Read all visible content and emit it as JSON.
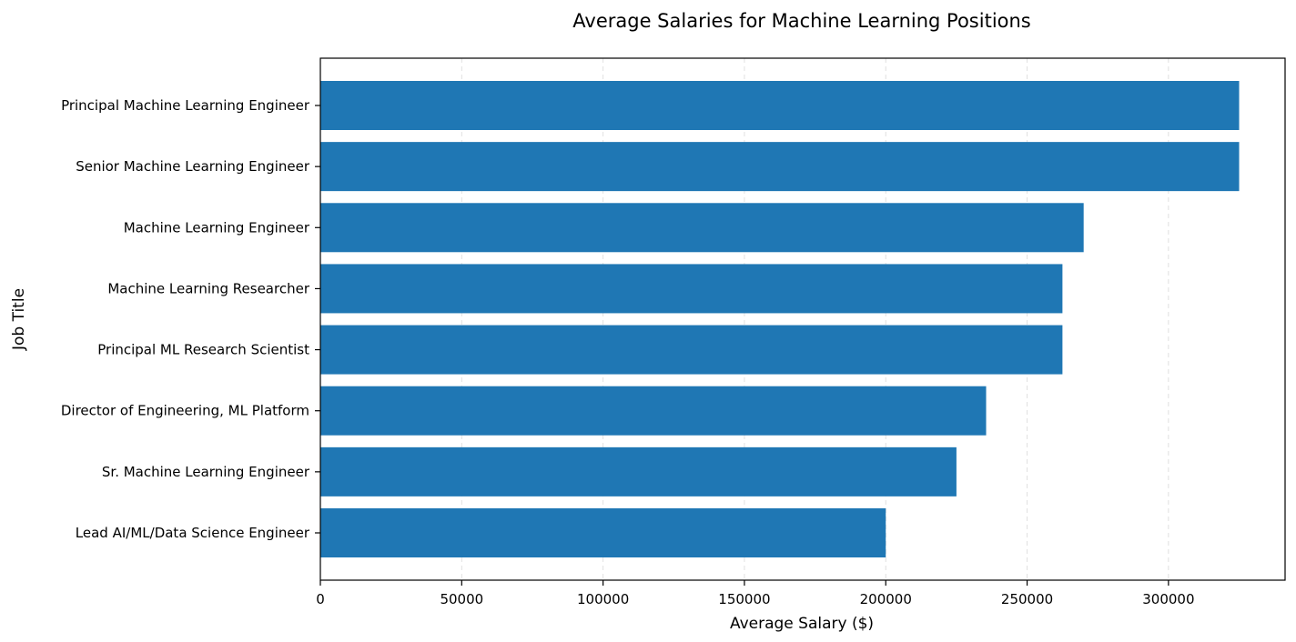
{
  "chart_data": {
    "type": "bar",
    "orientation": "horizontal",
    "title": "Average Salaries for Machine Learning Positions",
    "xlabel": "Average Salary ($)",
    "ylabel": "Job Title",
    "categories": [
      "Principal Machine Learning Engineer",
      "Senior Machine Learning Engineer",
      "Machine Learning Engineer",
      "Machine Learning Researcher",
      "Principal ML Research Scientist",
      "Director of Engineering, ML Platform",
      "Sr. Machine Learning Engineer",
      "Lead AI/ML/Data Science Engineer"
    ],
    "values": [
      325000,
      325000,
      270000,
      262500,
      262500,
      235500,
      225000,
      200000
    ],
    "xlim": [
      0,
      341250
    ],
    "xticks": [
      0,
      50000,
      100000,
      150000,
      200000,
      250000,
      300000
    ],
    "grid": "x-dashed",
    "bar_color": "#1f77b4"
  }
}
